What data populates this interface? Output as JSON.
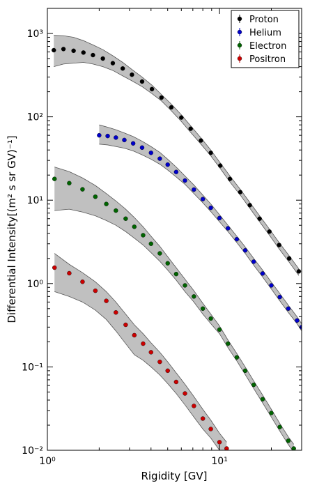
{
  "chart_data": {
    "type": "scatter",
    "xlabel": "Rigidity [GV]",
    "ylabel": "Differential Intensity[(m² s sr GV)⁻¹]",
    "xscale": "log",
    "yscale": "log",
    "xlim": [
      1,
      30
    ],
    "ylim": [
      0.01,
      2000
    ],
    "xticks": [
      {
        "value": 1,
        "label": "10⁰"
      },
      {
        "value": 10,
        "label": "10¹"
      }
    ],
    "yticks": [
      {
        "value": 0.01,
        "label": "10⁻²"
      },
      {
        "value": 0.1,
        "label": "10⁻¹"
      },
      {
        "value": 1,
        "label": "10⁰"
      },
      {
        "value": 10,
        "label": "10¹"
      },
      {
        "value": 100,
        "label": "10²"
      },
      {
        "value": 1000,
        "label": "10³"
      }
    ],
    "xminorticks": [
      2,
      3,
      4,
      5,
      6,
      7,
      8,
      9,
      20
    ],
    "yminorticks": [
      0.02,
      0.03,
      0.04,
      0.05,
      0.06,
      0.07,
      0.08,
      0.09,
      0.2,
      0.3,
      0.4,
      0.5,
      0.6,
      0.7,
      0.8,
      0.9,
      2,
      3,
      4,
      5,
      6,
      7,
      8,
      9,
      20,
      30,
      40,
      50,
      60,
      70,
      80,
      90,
      200,
      300,
      400,
      500,
      600,
      700,
      800,
      900
    ],
    "legend": "upper right",
    "band_color": "#c0c0c0",
    "series": [
      {
        "name": "Proton",
        "color": "#000000",
        "x": [
          1.09,
          1.24,
          1.42,
          1.62,
          1.84,
          2.1,
          2.4,
          2.74,
          3.1,
          3.55,
          4.05,
          4.6,
          5.25,
          6.0,
          6.8,
          7.8,
          8.9,
          10.1,
          11.5,
          13.2,
          15.0,
          17.1,
          19.5,
          22.2,
          25.4,
          28.9
        ],
        "values": [
          630,
          650,
          620,
          590,
          550,
          500,
          440,
          380,
          320,
          265,
          215,
          170,
          130,
          98,
          72,
          52,
          37,
          26,
          18,
          12.5,
          8.7,
          6.0,
          4.2,
          2.9,
          2.0,
          1.4
        ],
        "upper": [
          950,
          940,
          900,
          820,
          730,
          640,
          540,
          450,
          370,
          300,
          240,
          185,
          142,
          106,
          78,
          56,
          40,
          28,
          19.5,
          13.5,
          9.4,
          6.5,
          4.5,
          3.1,
          2.15,
          1.5
        ],
        "lower": [
          400,
          430,
          440,
          450,
          430,
          400,
          360,
          310,
          270,
          230,
          190,
          155,
          118,
          88,
          65,
          47,
          34,
          24,
          16.5,
          11.5,
          8.0,
          5.5,
          3.8,
          2.6,
          1.8,
          1.25
        ]
      },
      {
        "name": "Helium",
        "color": "#0000cc",
        "x": [
          2.0,
          2.24,
          2.5,
          2.8,
          3.15,
          3.55,
          4.0,
          4.5,
          5.0,
          5.6,
          6.3,
          7.1,
          8.0,
          8.9,
          10.0,
          11.2,
          12.6,
          14.1,
          15.8,
          17.8,
          20,
          22.4,
          25.1,
          28.2,
          30
        ],
        "values": [
          60,
          58.9,
          56.4,
          52.7,
          48,
          42.7,
          37,
          31.5,
          26.7,
          21.8,
          17.2,
          13.4,
          10.3,
          8.1,
          6.1,
          4.6,
          3.4,
          2.5,
          1.83,
          1.32,
          0.95,
          0.69,
          0.5,
          0.36,
          0.3
        ],
        "upper": [
          80,
          75,
          70,
          64,
          58,
          51,
          44,
          37.5,
          31,
          25,
          19.5,
          15.2,
          11.5,
          9.0,
          6.7,
          5.0,
          3.7,
          2.75,
          2.0,
          1.45,
          1.04,
          0.76,
          0.55,
          0.4,
          0.33
        ],
        "lower": [
          47,
          46,
          44,
          42,
          39,
          35,
          31,
          27,
          23,
          19,
          15.5,
          12,
          9.3,
          7.3,
          5.5,
          4.2,
          3.1,
          2.3,
          1.66,
          1.2,
          0.86,
          0.62,
          0.45,
          0.33,
          0.27
        ]
      },
      {
        "name": "Electron",
        "color": "#006400",
        "x": [
          1.1,
          1.34,
          1.6,
          1.9,
          2.2,
          2.5,
          2.85,
          3.2,
          3.6,
          4.0,
          4.5,
          5.0,
          5.6,
          6.3,
          7.1,
          8.0,
          8.9,
          10,
          11.2,
          12.6,
          14.1,
          15.8,
          17.8,
          20,
          22.4,
          25.1,
          27
        ],
        "values": [
          18,
          16,
          13.5,
          11,
          9,
          7.5,
          6.0,
          4.8,
          3.8,
          3.0,
          2.3,
          1.75,
          1.3,
          0.95,
          0.7,
          0.5,
          0.38,
          0.28,
          0.19,
          0.13,
          0.09,
          0.061,
          0.041,
          0.028,
          0.019,
          0.013,
          0.0105
        ],
        "upper": [
          25,
          22,
          18.5,
          15,
          12,
          9.8,
          7.8,
          6.2,
          4.8,
          3.7,
          2.8,
          2.1,
          1.55,
          1.13,
          0.82,
          0.58,
          0.43,
          0.31,
          0.21,
          0.145,
          0.1,
          0.068,
          0.046,
          0.031,
          0.021,
          0.0145,
          0.0118
        ],
        "lower": [
          7.5,
          7.8,
          7.2,
          6.5,
          5.7,
          5.0,
          4.2,
          3.5,
          2.9,
          2.35,
          1.85,
          1.45,
          1.1,
          0.8,
          0.6,
          0.43,
          0.33,
          0.25,
          0.17,
          0.118,
          0.081,
          0.055,
          0.037,
          0.025,
          0.017,
          0.0117,
          0.0095
        ]
      },
      {
        "name": "Positron",
        "color": "#cc0000",
        "x": [
          1.1,
          1.34,
          1.6,
          1.9,
          2.2,
          2.5,
          2.85,
          3.2,
          3.6,
          4.0,
          4.5,
          5.0,
          5.6,
          6.3,
          7.1,
          8.0,
          8.9,
          10,
          11
        ],
        "values": [
          1.55,
          1.33,
          1.05,
          0.82,
          0.62,
          0.45,
          0.32,
          0.24,
          0.19,
          0.15,
          0.115,
          0.09,
          0.066,
          0.048,
          0.034,
          0.024,
          0.018,
          0.0125,
          0.0105
        ],
        "upper": [
          2.3,
          1.7,
          1.35,
          1.05,
          0.8,
          0.6,
          0.43,
          0.32,
          0.25,
          0.195,
          0.15,
          0.115,
          0.085,
          0.062,
          0.044,
          0.031,
          0.023,
          0.016,
          0.0125
        ],
        "lower": [
          0.8,
          0.7,
          0.6,
          0.48,
          0.37,
          0.27,
          0.19,
          0.14,
          0.12,
          0.1,
          0.08,
          0.063,
          0.048,
          0.035,
          0.025,
          0.018,
          0.014,
          0.01,
          0.009
        ]
      }
    ]
  }
}
